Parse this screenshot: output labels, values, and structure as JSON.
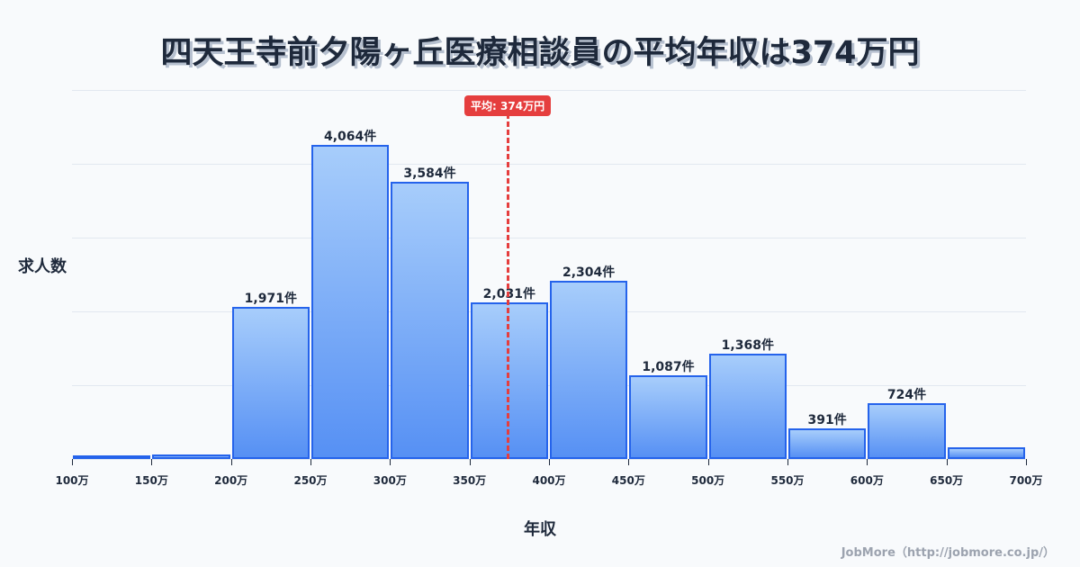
{
  "header": {
    "title": "四天王寺前夕陽ヶ丘医療相談員の平均年収は374万円"
  },
  "axes": {
    "ylabel": "求人数",
    "xlabel": "年収"
  },
  "credit": "JobMore（http://jobmore.co.jp/）",
  "mean": {
    "label": "平均: 374万円",
    "value": 374,
    "color": "#e53e3e"
  },
  "chart_data": {
    "type": "bar",
    "title": "四天王寺前夕陽ヶ丘医療相談員の平均年収は374万円",
    "xlabel": "年収",
    "ylabel": "求人数",
    "x_ticks": [
      "100万",
      "150万",
      "200万",
      "250万",
      "300万",
      "350万",
      "400万",
      "450万",
      "500万",
      "550万",
      "600万",
      "650万",
      "700万"
    ],
    "categories": [
      "100-150万",
      "150-200万",
      "200-250万",
      "250-300万",
      "300-350万",
      "350-400万",
      "400-450万",
      "450-500万",
      "500-550万",
      "550-600万",
      "600-650万",
      "650-700万"
    ],
    "values": [
      20,
      55,
      1971,
      4064,
      3584,
      2031,
      2304,
      1087,
      1368,
      391,
      724,
      150
    ],
    "labels": [
      "",
      "",
      "1,971件",
      "4,064件",
      "3,584件",
      "2,031件",
      "2,304件",
      "1,087件",
      "1,368件",
      "391件",
      "724件",
      ""
    ],
    "mean_line": {
      "value": 374,
      "label": "平均: 374万円"
    },
    "ylim": [
      0,
      4775
    ],
    "grid": true,
    "bar_color": "#2563eb",
    "legend": "none"
  }
}
